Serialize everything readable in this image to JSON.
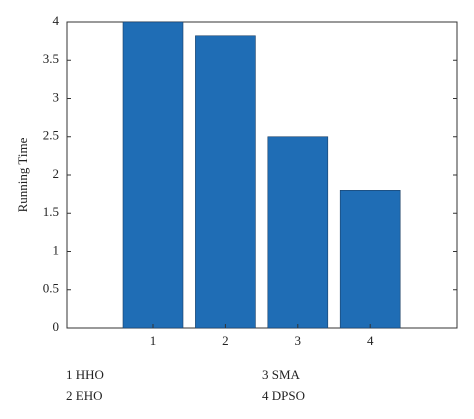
{
  "chart_data": {
    "type": "bar",
    "y_label": "Running Time",
    "categories": [
      "1",
      "2",
      "3",
      "4"
    ],
    "values": [
      4.0,
      3.82,
      2.5,
      1.8
    ],
    "color": "#1f6db5",
    "ylim": [
      0,
      4
    ],
    "yticks": [
      0,
      0.5,
      1,
      1.5,
      2,
      2.5,
      3,
      3.5,
      4
    ],
    "annotations": [
      "1 HHO",
      "2 EHO",
      "3 SMA",
      "4 DPSO"
    ]
  }
}
